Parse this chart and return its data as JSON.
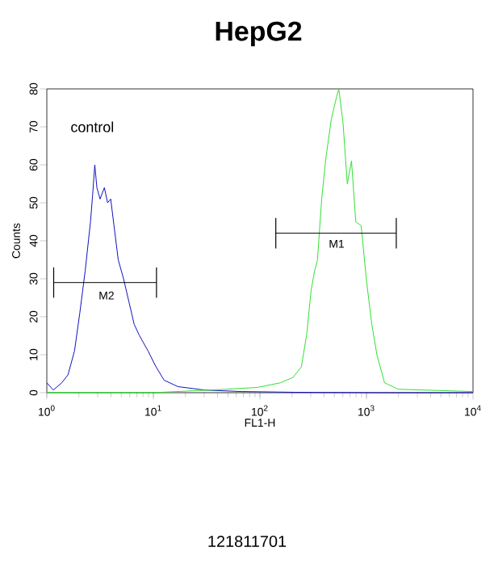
{
  "chart_data": {
    "type": "line",
    "title": "HepG2",
    "xlabel": "FL1-H",
    "ylabel": "Counts",
    "log": "x",
    "grid": false,
    "marker": "none",
    "xlim": [
      1,
      10000
    ],
    "ylim": [
      0,
      80
    ],
    "xticks": [
      {
        "value": 1,
        "label": "10$^{0}$"
      },
      {
        "value": 10,
        "label": "10$^{1}$"
      },
      {
        "value": 100,
        "label": "10$^{2}$"
      },
      {
        "value": 1000,
        "label": "10$^{3}$"
      },
      {
        "value": 10000,
        "label": "10$^{4}$"
      }
    ],
    "yticks": [
      0,
      10,
      20,
      30,
      40,
      50,
      60,
      70,
      80
    ],
    "series": [
      {
        "color": "#1010c0",
        "x": [
          1,
          1.15,
          1.38,
          1.58,
          1.82,
          2.04,
          2.29,
          2.57,
          2.69,
          2.82,
          2.95,
          3.16,
          3.47,
          3.72,
          3.98,
          4.27,
          4.68,
          5.25,
          5.89,
          6.61,
          7.41,
          8.91,
          10.5,
          12.6,
          17,
          30.2,
          67.6,
          219,
          1259,
          10000
        ],
        "values": [
          2.6,
          0.7,
          2.6,
          4.7,
          11,
          21,
          32,
          45,
          52,
          60,
          54,
          51,
          54,
          50,
          51,
          44,
          35,
          30,
          24,
          18,
          15,
          11,
          7,
          3.3,
          1.6,
          0.7,
          0.3,
          0.1,
          0,
          0
        ]
      },
      {
        "color": "#30e030",
        "x": [
          1,
          11.7,
          47.9,
          95.5,
          155,
          204,
          245,
          275,
          302,
          324,
          347,
          380,
          417,
          468,
          525,
          550,
          603,
          661,
          724,
          794,
          891,
          1000,
          1122,
          1259,
          1479,
          1995,
          10000
        ],
        "values": [
          0.1,
          0.1,
          0.9,
          1.4,
          2.6,
          4,
          6.8,
          15.4,
          26.8,
          31.7,
          35,
          51,
          62,
          72,
          78,
          80,
          71,
          55,
          61,
          45,
          44,
          29.6,
          18,
          9.7,
          2.6,
          0.9,
          0.3
        ]
      },
      {
        "color": "#000000",
        "x": [
          141,
          1905
        ],
        "values": [
          42,
          42
        ],
        "errors": [
          4,
          4
        ]
      },
      {
        "color": "#000000",
        "x": [
          1.16,
          10.7
        ],
        "values": [
          29,
          29
        ],
        "errors": [
          4,
          4
        ]
      }
    ],
    "annotations": [
      "control",
      "M1",
      "M2",
      "121811701"
    ]
  }
}
